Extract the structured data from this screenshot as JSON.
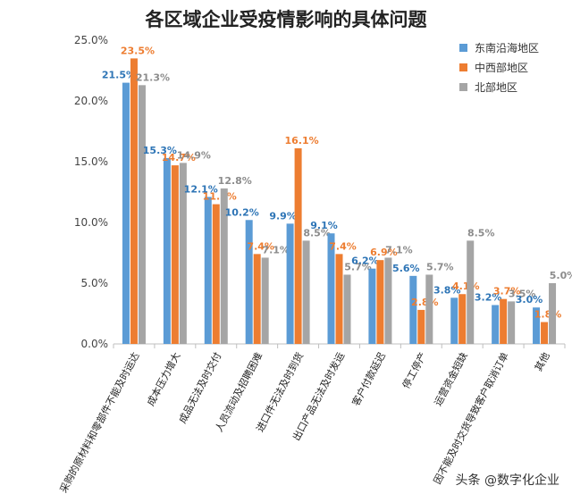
{
  "page": {
    "title": "各区域企业受疫情影响的具体问题",
    "watermark": "头条 @数字化企业"
  },
  "chart_data": {
    "type": "bar",
    "title": "各区域企业受疫情影响的具体问题",
    "xlabel": "",
    "ylabel": "",
    "ylim": [
      0,
      25
    ],
    "yticks": [
      "0.0%",
      "5.0%",
      "10.0%",
      "15.0%",
      "20.0%",
      "25.0%"
    ],
    "ytick_values": [
      0,
      5,
      10,
      15,
      20,
      25
    ],
    "grid": false,
    "legend_position": "top-right",
    "categories": [
      "采购的原材料和零部件不能及时运达",
      "成本压力增大",
      "成品无法及时交付",
      "人员流动及招聘困难",
      "进口件无法及时到货",
      "出口产品无法及时发运",
      "客户付款延迟",
      "停工停产",
      "运营资金短缺",
      "因不能及时交货导致客户取消订单",
      "其他"
    ],
    "series": [
      {
        "name": "东南沿海地区",
        "color": "#5B9BD5",
        "label_color": "#2E75B6",
        "values": [
          21.5,
          15.3,
          12.1,
          10.2,
          9.9,
          9.1,
          6.2,
          5.6,
          3.8,
          3.2,
          3.0
        ],
        "labels": [
          "21.5%",
          "15.3%",
          "12.1%",
          "10.2%",
          "9.9%",
          "9.1%",
          "6.2%",
          "5.6%",
          "3.8%",
          "3.2%",
          "3.0%"
        ]
      },
      {
        "name": "中西部地区",
        "color": "#ED7D31",
        "label_color": "#ED7D31",
        "values": [
          23.5,
          14.7,
          11.5,
          7.4,
          16.1,
          7.4,
          6.9,
          2.8,
          4.1,
          3.7,
          1.8
        ],
        "labels": [
          "23.5%",
          "14.7%",
          "11.5%",
          "7.4%",
          "16.1%",
          "7.4%",
          "6.9%",
          "2.8%",
          "4.1%",
          "3.7%",
          "1.8%"
        ]
      },
      {
        "name": "北部地区",
        "color": "#A5A5A5",
        "label_color": "#8C8C8C",
        "values": [
          21.3,
          14.9,
          12.8,
          7.1,
          8.5,
          5.7,
          7.1,
          5.7,
          8.5,
          3.5,
          5.0
        ],
        "labels": [
          "21.3%",
          "14.9%",
          "12.8%",
          "7.1%",
          "8.5%",
          "5.7%",
          "7.1%",
          "5.7%",
          "8.5%",
          "3.5%",
          "5.0%"
        ]
      }
    ]
  }
}
